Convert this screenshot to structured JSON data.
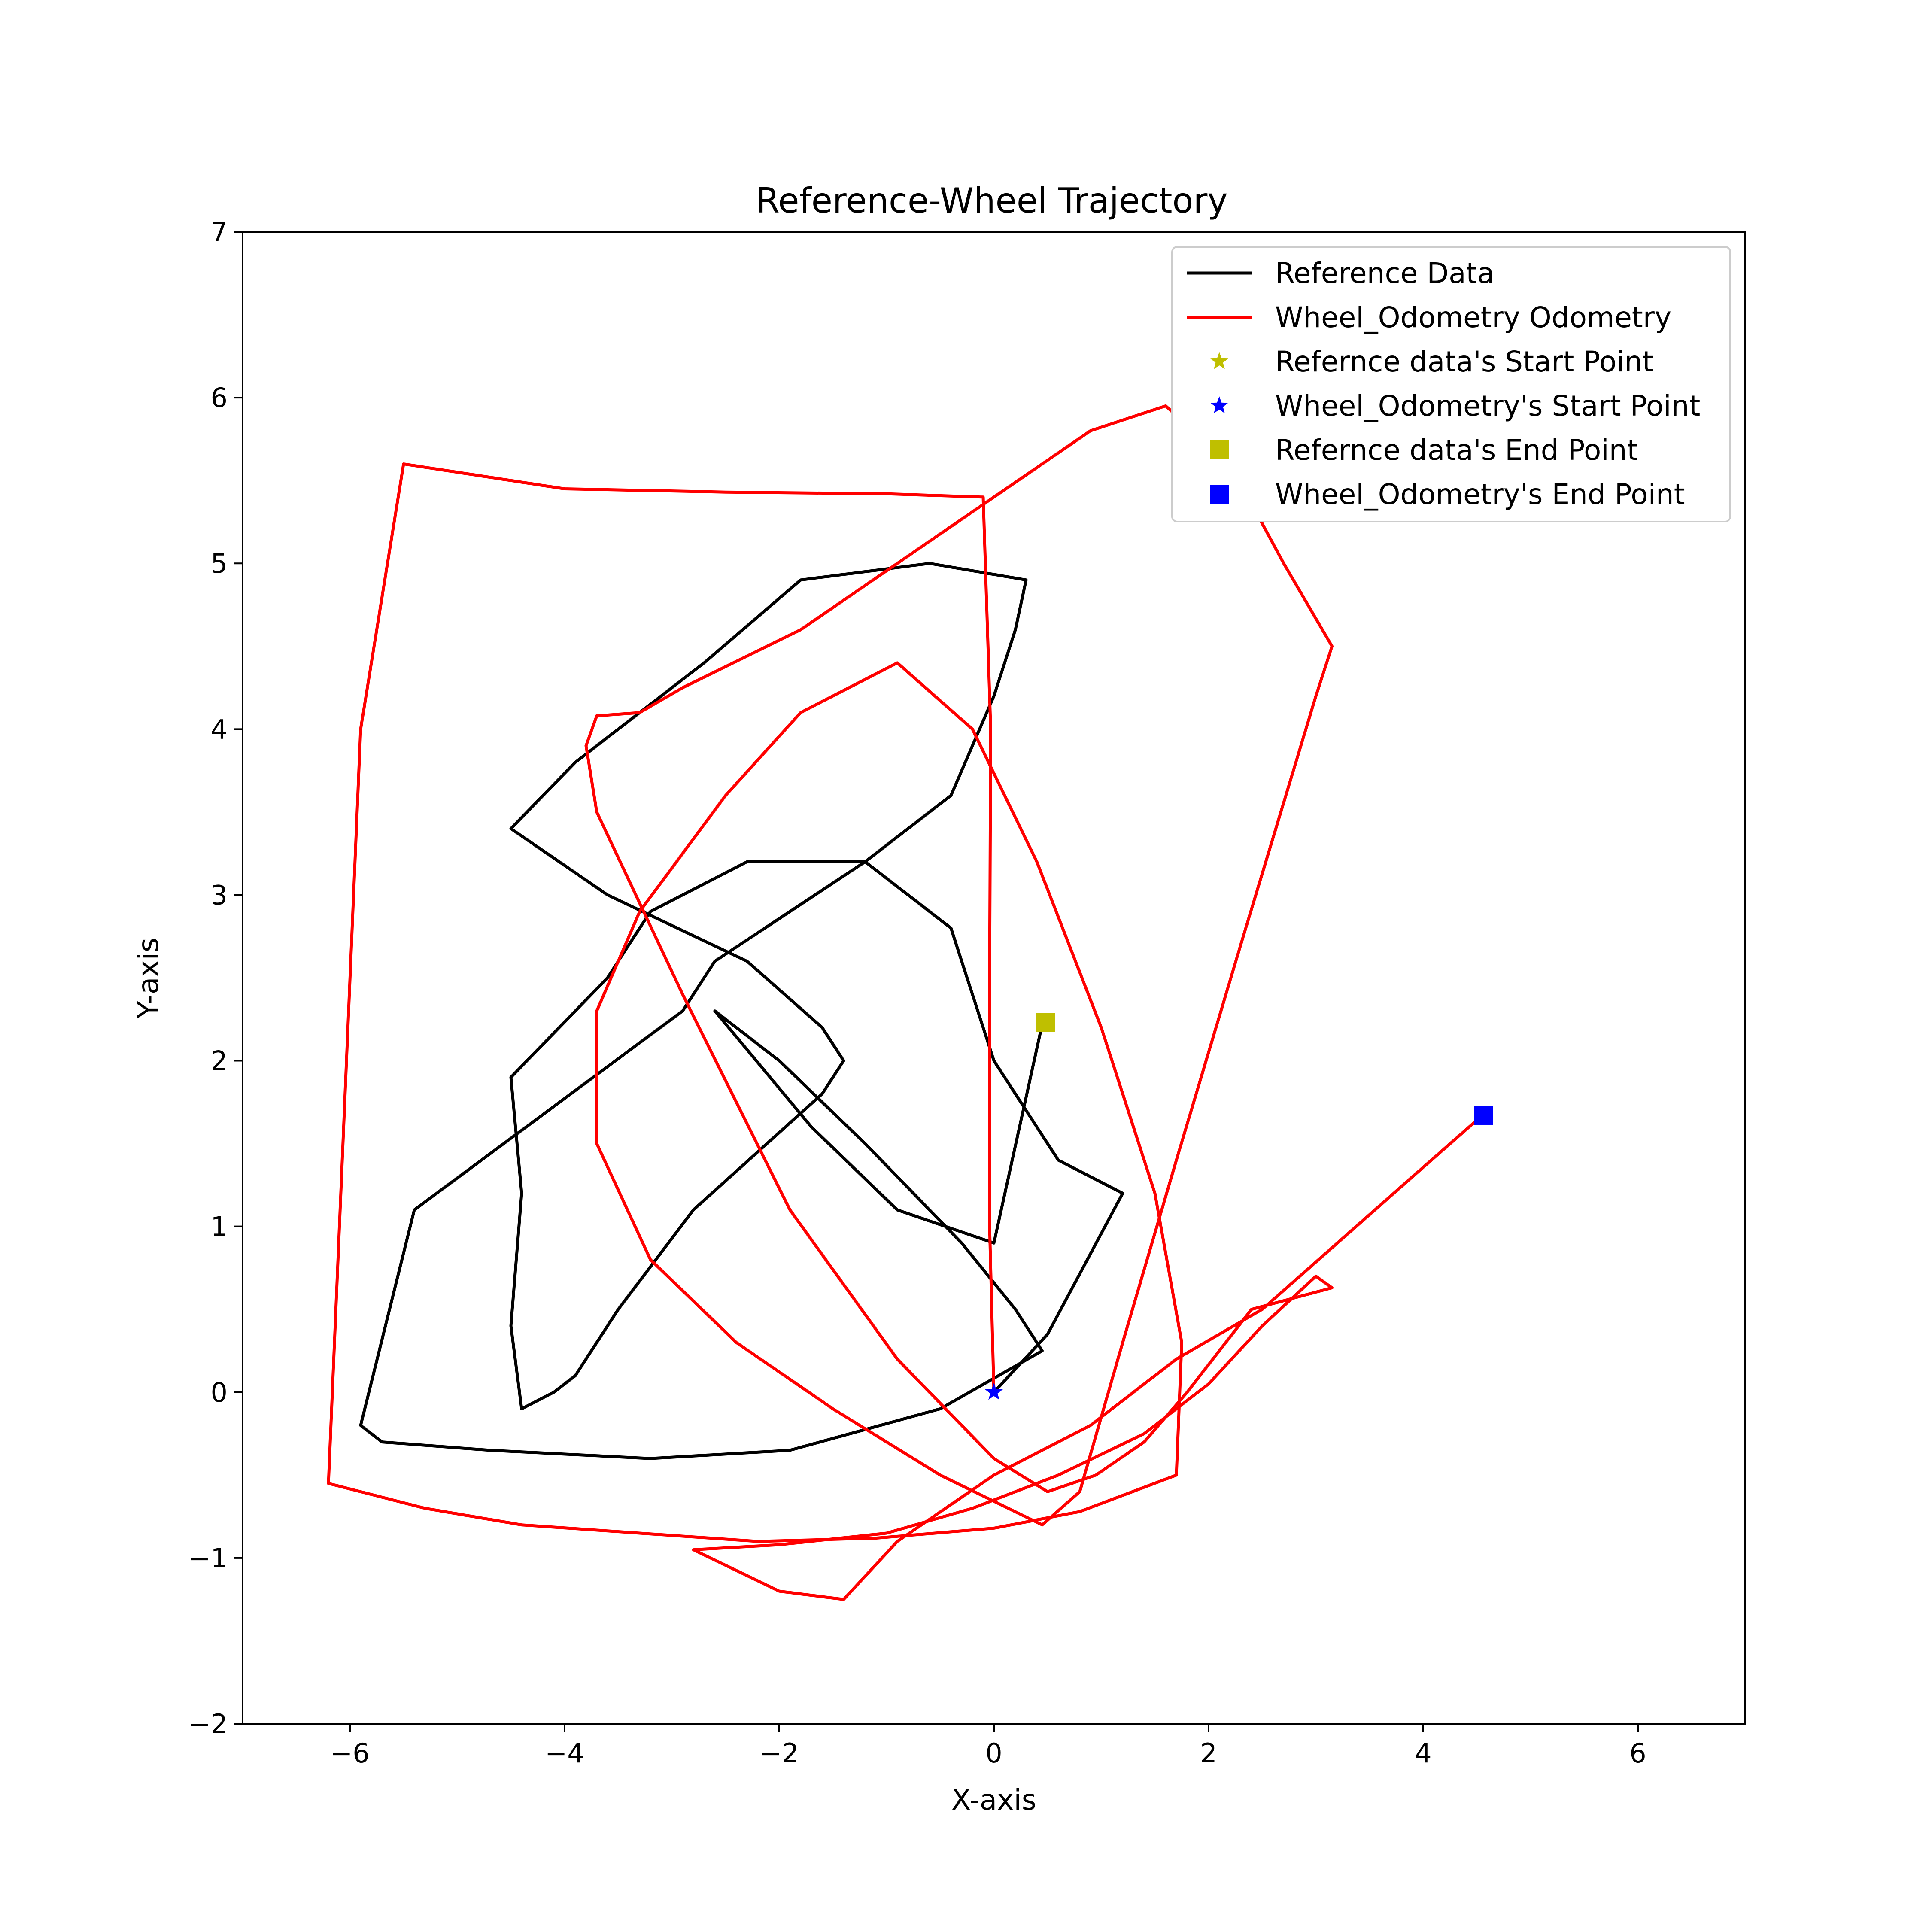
{
  "chart_data": {
    "type": "line",
    "title": "Reference-Wheel Trajectory",
    "xlabel": "X-axis",
    "ylabel": "Y-axis",
    "xlim": [
      -7,
      7
    ],
    "ylim": [
      -2,
      7
    ],
    "xticks": [
      -6,
      -4,
      -2,
      0,
      2,
      4,
      6
    ],
    "xtick_labels": [
      "−6",
      "−4",
      "−2",
      "0",
      "2",
      "4",
      "6"
    ],
    "yticks": [
      -2,
      -1,
      0,
      1,
      2,
      3,
      4,
      5,
      6,
      7
    ],
    "ytick_labels": [
      "−2",
      "−1",
      "0",
      "1",
      "2",
      "3",
      "4",
      "5",
      "6",
      "7"
    ],
    "grid": false,
    "legend_position": "top-right",
    "series": [
      {
        "name": "Reference Data",
        "color": "#000000",
        "x": [
          0.0,
          0.5,
          1.2,
          0.6,
          0.0,
          -0.4,
          -1.2,
          -1.4,
          -2.3,
          -3.2,
          -3.6,
          -4.5,
          -4.4,
          -4.5,
          -4.4,
          -4.1,
          -3.9,
          -3.7,
          -3.5,
          -2.8,
          -1.6,
          -1.4,
          -1.6,
          -2.3,
          -3.6,
          -4.5,
          -4.2,
          -3.9,
          -3.3,
          -2.7,
          -1.8,
          -0.6,
          0.3,
          0.2,
          0.0,
          -0.2,
          -0.4,
          -1.2,
          -1.9,
          -2.6,
          -2.9,
          -5.4,
          -5.9,
          -5.7,
          -4.7,
          -3.2,
          -1.9,
          -0.5,
          0.45,
          0.2,
          -0.3,
          -1.2,
          -2.0,
          -2.6,
          -1.7,
          -0.9,
          0.0,
          0.45
        ],
        "y": [
          0.0,
          0.35,
          1.2,
          1.4,
          2.0,
          2.8,
          3.2,
          3.2,
          3.2,
          2.9,
          2.5,
          1.9,
          1.2,
          0.4,
          -0.1,
          0.0,
          0.1,
          0.3,
          0.5,
          1.1,
          1.8,
          2.0,
          2.2,
          2.6,
          3.0,
          3.4,
          3.6,
          3.8,
          4.1,
          4.4,
          4.9,
          5.0,
          4.9,
          4.6,
          4.2,
          3.9,
          3.6,
          3.2,
          2.9,
          2.6,
          2.3,
          1.1,
          -0.2,
          -0.3,
          -0.35,
          -0.4,
          -0.35,
          -0.1,
          0.25,
          0.5,
          0.9,
          1.5,
          2.0,
          2.3,
          1.6,
          1.1,
          0.9,
          2.22
        ]
      },
      {
        "name": "Wheel_Odometry Odometry",
        "color": "#ff0000",
        "x": [
          0.0,
          -0.04,
          -0.04,
          -0.03,
          -0.1,
          -1.0,
          -2.5,
          -4.0,
          -5.5,
          -5.9,
          -6.2,
          -5.3,
          -4.4,
          -3.3,
          -2.2,
          -1.1,
          0.0,
          0.8,
          1.7,
          1.75,
          1.5,
          1.0,
          0.4,
          -0.2,
          -0.9,
          -1.8,
          -2.5,
          -3.3,
          -3.7,
          -3.7,
          -3.2,
          -2.4,
          -1.5,
          -0.5,
          0.45,
          0.8,
          1.2,
          1.7,
          2.3,
          3.0,
          3.15,
          2.7,
          2.2,
          1.6,
          0.9,
          0.0,
          -0.9,
          -1.8,
          -2.9,
          -3.3,
          -3.7,
          -3.8,
          -3.7,
          -2.9,
          -1.9,
          -0.9,
          0.0,
          0.5,
          0.95,
          1.4,
          1.8,
          2.4,
          3.15,
          3.0,
          2.5,
          2.0,
          1.4,
          0.6,
          -0.2,
          -1.0,
          -2.0,
          -2.8,
          -2.0,
          -1.4,
          -0.9,
          0.0,
          0.9,
          1.7,
          2.5,
          3.2,
          3.9,
          4.55
        ],
        "y": [
          0.0,
          1.0,
          2.5,
          4.0,
          5.4,
          5.42,
          5.43,
          5.45,
          5.6,
          4.0,
          -0.55,
          -0.7,
          -0.8,
          -0.85,
          -0.9,
          -0.88,
          -0.82,
          -0.72,
          -0.5,
          0.3,
          1.2,
          2.2,
          3.2,
          4.0,
          4.4,
          4.1,
          3.6,
          2.9,
          2.3,
          1.5,
          0.8,
          0.3,
          -0.1,
          -0.5,
          -0.8,
          -0.6,
          0.3,
          1.4,
          2.7,
          4.2,
          4.5,
          5.0,
          5.6,
          5.95,
          5.8,
          5.4,
          5.0,
          4.6,
          4.25,
          4.1,
          4.08,
          3.9,
          3.5,
          2.4,
          1.1,
          0.2,
          -0.4,
          -0.6,
          -0.5,
          -0.3,
          0.0,
          0.5,
          0.63,
          0.7,
          0.4,
          0.05,
          -0.25,
          -0.5,
          -0.7,
          -0.85,
          -0.92,
          -0.95,
          -1.2,
          -1.25,
          -0.9,
          -0.5,
          -0.2,
          0.2,
          0.5,
          0.9,
          1.3,
          1.67
        ]
      }
    ],
    "markers": [
      {
        "name": "Refernce data's Start Point",
        "shape": "star",
        "color": "#bfbf00",
        "x": null,
        "y": null
      },
      {
        "name": "Wheel_Odometry's Start Point",
        "shape": "star",
        "color": "#0000ff",
        "x": 0.0,
        "y": 0.0
      },
      {
        "name": "Refernce data's End Point",
        "shape": "square",
        "color": "#bfbf00",
        "x": 0.48,
        "y": 2.23
      },
      {
        "name": "Wheel_Odometry's End Point",
        "shape": "square",
        "color": "#0000ff",
        "x": 4.56,
        "y": 1.67
      }
    ]
  }
}
